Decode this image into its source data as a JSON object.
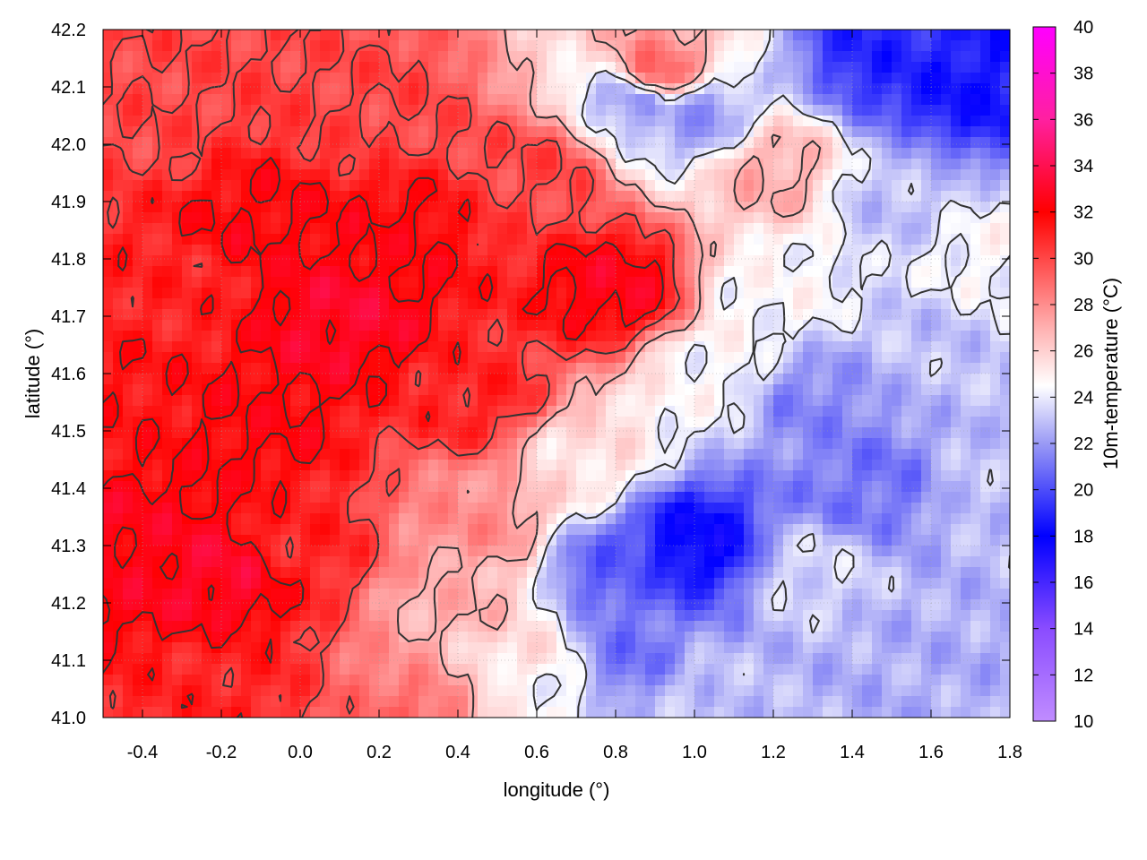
{
  "chart_data": {
    "type": "heatmap",
    "title": "",
    "xlabel": "longitude (°)",
    "ylabel": "latitude (°)",
    "colorbar_label": "10m-temperature (°C)",
    "xlim": [
      -0.5,
      1.8
    ],
    "ylim": [
      41.0,
      42.2
    ],
    "color_range": [
      10,
      40
    ],
    "grid": true,
    "x_ticks": [
      "-0.4",
      "-0.2",
      "0.0",
      "0.2",
      "0.4",
      "0.6",
      "0.8",
      "1.0",
      "1.2",
      "1.4",
      "1.6",
      "1.8"
    ],
    "y_ticks": [
      "41.0",
      "41.1",
      "41.2",
      "41.3",
      "41.4",
      "41.5",
      "41.6",
      "41.7",
      "41.8",
      "41.9",
      "42.0",
      "42.1",
      "42.2"
    ],
    "colorbar_ticks": [
      "10",
      "12",
      "14",
      "16",
      "18",
      "20",
      "22",
      "24",
      "26",
      "28",
      "30",
      "32",
      "34",
      "36",
      "38",
      "40"
    ],
    "colormap": [
      {
        "value": 10,
        "color": "#c08cff"
      },
      {
        "value": 14,
        "color": "#8a4cff"
      },
      {
        "value": 18,
        "color": "#0000ff"
      },
      {
        "value": 22,
        "color": "#9a9af5"
      },
      {
        "value": 24.5,
        "color": "#ffffff"
      },
      {
        "value": 27,
        "color": "#ffb0b0"
      },
      {
        "value": 32,
        "color": "#ff0000"
      },
      {
        "value": 36,
        "color": "#ff20a0"
      },
      {
        "value": 40,
        "color": "#ff00ff"
      }
    ],
    "contour_levels": [
      24,
      27,
      30,
      32
    ],
    "contour_color": "#333333",
    "field_anchors": [
      {
        "lon": -0.45,
        "lat": 41.3,
        "value": 32.5
      },
      {
        "lon": -0.2,
        "lat": 41.25,
        "value": 33
      },
      {
        "lon": -0.2,
        "lat": 41.05,
        "value": 31
      },
      {
        "lon": -0.1,
        "lat": 41.5,
        "value": 32
      },
      {
        "lon": -0.3,
        "lat": 41.75,
        "value": 31
      },
      {
        "lon": -0.1,
        "lat": 41.85,
        "value": 32
      },
      {
        "lon": 0.1,
        "lat": 41.7,
        "value": 33
      },
      {
        "lon": 0.25,
        "lat": 41.85,
        "value": 32
      },
      {
        "lon": 0.45,
        "lat": 41.55,
        "value": 31
      },
      {
        "lon": 0.8,
        "lat": 41.75,
        "value": 32.5
      },
      {
        "lon": 0.6,
        "lat": 41.95,
        "value": 30
      },
      {
        "lon": 0.2,
        "lat": 42.05,
        "value": 30
      },
      {
        "lon": -0.4,
        "lat": 42.05,
        "value": 30
      },
      {
        "lon": 0.4,
        "lat": 41.2,
        "value": 27
      },
      {
        "lon": 0.55,
        "lat": 41.1,
        "value": 25.5
      },
      {
        "lon": 0.45,
        "lat": 41.35,
        "value": 28
      },
      {
        "lon": 0.7,
        "lat": 41.45,
        "value": 25.5
      },
      {
        "lon": 0.9,
        "lat": 42.12,
        "value": 29
      },
      {
        "lon": 0.85,
        "lat": 42.08,
        "value": 22
      },
      {
        "lon": 1.0,
        "lat": 42.05,
        "value": 22
      },
      {
        "lon": 1.2,
        "lat": 41.95,
        "value": 27
      },
      {
        "lon": 1.5,
        "lat": 42.15,
        "value": 19
      },
      {
        "lon": 1.7,
        "lat": 42.1,
        "value": 18.5
      },
      {
        "lon": 1.5,
        "lat": 41.9,
        "value": 23
      },
      {
        "lon": 1.6,
        "lat": 41.65,
        "value": 23
      },
      {
        "lon": 1.3,
        "lat": 41.55,
        "value": 21.5
      },
      {
        "lon": 1.45,
        "lat": 41.4,
        "value": 21
      },
      {
        "lon": 1.2,
        "lat": 41.75,
        "value": 24.5
      },
      {
        "lon": 1.0,
        "lat": 41.3,
        "value": 18
      },
      {
        "lon": 0.8,
        "lat": 41.25,
        "value": 20.5
      },
      {
        "lon": 0.85,
        "lat": 41.1,
        "value": 21
      },
      {
        "lon": 1.0,
        "lat": 41.05,
        "value": 23
      },
      {
        "lon": 1.3,
        "lat": 41.25,
        "value": 23.5
      },
      {
        "lon": 1.5,
        "lat": 41.1,
        "value": 22.5
      },
      {
        "lon": 1.75,
        "lat": 41.05,
        "value": 22.5
      },
      {
        "lon": 1.75,
        "lat": 41.4,
        "value": 23
      },
      {
        "lon": 1.75,
        "lat": 41.8,
        "value": 24.5
      },
      {
        "lon": 0.3,
        "lat": 41.0,
        "value": 29
      },
      {
        "lon": -0.45,
        "lat": 41.55,
        "value": 31.5
      },
      {
        "lon": 0.0,
        "lat": 41.3,
        "value": 31
      },
      {
        "lon": 1.05,
        "lat": 41.6,
        "value": 24.5
      },
      {
        "lon": 0.6,
        "lat": 41.05,
        "value": 24.5
      }
    ]
  }
}
